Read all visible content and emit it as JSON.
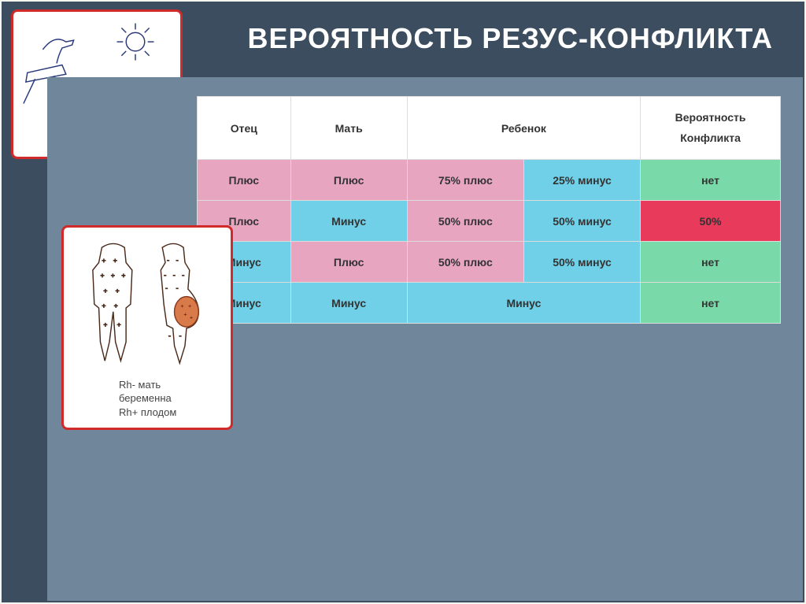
{
  "title": "ВЕРОЯТНОСТЬ РЕЗУС-КОНФЛИКТА",
  "colors": {
    "slide_bg": "#3b4d5f",
    "panel_bg": "#6f869b",
    "frame_border": "#d02a2a",
    "pink": "#e8a5c0",
    "cyan": "#6fd0e8",
    "green": "#7ad9a8",
    "red": "#e83a5a",
    "white": "#ffffff",
    "cell_border": "#dcdcdc"
  },
  "table": {
    "headers": {
      "father": "Отец",
      "mother": "Мать",
      "child": "Ребенок",
      "prob_line1": "Вероятность",
      "prob_line2": "Конфликта"
    },
    "col_widths_pct": [
      16,
      20,
      20,
      20,
      24
    ],
    "rows": [
      {
        "cells": [
          {
            "text": "Плюс",
            "bg": "#e8a5c0",
            "span": 1
          },
          {
            "text": "Плюс",
            "bg": "#e8a5c0",
            "span": 1
          },
          {
            "text": "75% плюс",
            "bg": "#e8a5c0",
            "span": 1
          },
          {
            "text": "25% минус",
            "bg": "#6fd0e8",
            "span": 1
          },
          {
            "text": "нет",
            "bg": "#7ad9a8",
            "span": 1
          }
        ]
      },
      {
        "cells": [
          {
            "text": "Плюс",
            "bg": "#e8a5c0",
            "span": 1
          },
          {
            "text": "Минус",
            "bg": "#6fd0e8",
            "span": 1
          },
          {
            "text": "50% плюс",
            "bg": "#e8a5c0",
            "span": 1
          },
          {
            "text": "50% минус",
            "bg": "#6fd0e8",
            "span": 1
          },
          {
            "text": "50%",
            "bg": "#e83a5a",
            "span": 1
          }
        ]
      },
      {
        "cells": [
          {
            "text": "Минус",
            "bg": "#6fd0e8",
            "span": 1
          },
          {
            "text": "Плюс",
            "bg": "#e8a5c0",
            "span": 1
          },
          {
            "text": "50% плюс",
            "bg": "#e8a5c0",
            "span": 1
          },
          {
            "text": "50% минус",
            "bg": "#6fd0e8",
            "span": 1
          },
          {
            "text": "нет",
            "bg": "#7ad9a8",
            "span": 1
          }
        ]
      },
      {
        "cells": [
          {
            "text": "Минус",
            "bg": "#6fd0e8",
            "span": 1
          },
          {
            "text": "Минус",
            "bg": "#6fd0e8",
            "span": 1
          },
          {
            "text": "Минус",
            "bg": "#6fd0e8",
            "span": 2
          },
          {
            "text": "нет",
            "bg": "#7ad9a8",
            "span": 1
          }
        ]
      }
    ]
  },
  "bottom_caption": {
    "line1": "Rh- мать",
    "line2": "беременна",
    "line3": "Rh+ плодом"
  }
}
